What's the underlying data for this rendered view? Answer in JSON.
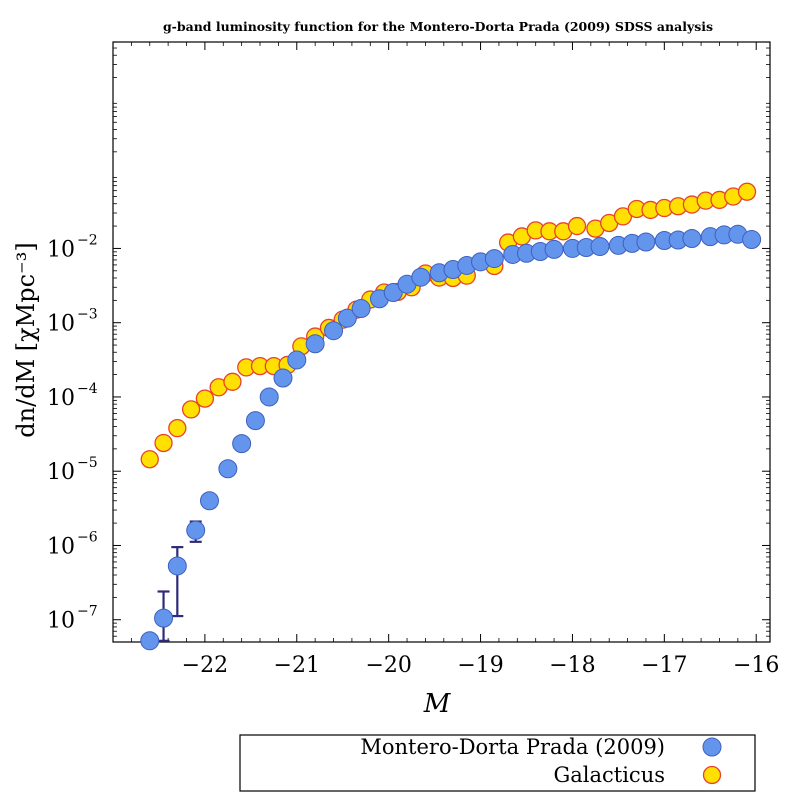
{
  "chart_data": {
    "type": "scatter",
    "title": "g-band luminosity function for the Montero-Dorta  Prada (2009) SDSS analysis",
    "xlabel": "M",
    "ylabel": "dn/dM [χMpc⁻³]",
    "xlim": [
      -23.0,
      -15.85
    ],
    "ylim_log10": [
      -7.3,
      0.78
    ],
    "yscale": "log",
    "x_ticks": [
      -22,
      -21,
      -20,
      -19,
      -18,
      -17,
      -16
    ],
    "x_tick_labels": [
      "−22",
      "−21",
      "−20",
      "−19",
      "−18",
      "−17",
      "−16"
    ],
    "y_ticks_log10": [
      -7,
      -6,
      -5,
      -4,
      -3,
      -2
    ],
    "y_tick_base": "10",
    "y_tick_exponents": [
      "−7",
      "−6",
      "−5",
      "−4",
      "−3",
      "−2"
    ],
    "legend_position": "bottom",
    "series": [
      {
        "name": "Montero-Dorta  Prada (2009)",
        "color": "#6495ed",
        "edge": "#3f5fbf",
        "x": [
          -22.6,
          -22.45,
          -22.3,
          -22.1,
          -21.95,
          -21.75,
          -21.6,
          -21.45,
          -21.3,
          -21.15,
          -21.0,
          -20.8,
          -20.6,
          -20.45,
          -20.3,
          -20.1,
          -19.95,
          -19.8,
          -19.65,
          -19.45,
          -19.3,
          -19.15,
          -19.0,
          -18.85,
          -18.65,
          -18.5,
          -18.35,
          -18.2,
          -18.0,
          -17.85,
          -17.7,
          -17.5,
          -17.35,
          -17.2,
          -17.0,
          -16.85,
          -16.7,
          -16.5,
          -16.35,
          -16.2,
          -16.05
        ],
        "y": [
          5.2e-08,
          1.05e-07,
          5.3e-07,
          1.6e-06,
          4e-06,
          1.08e-05,
          2.35e-05,
          4.8e-05,
          0.0001,
          0.00018,
          0.000315,
          0.00052,
          0.00078,
          0.00115,
          0.00155,
          0.0021,
          0.00255,
          0.0033,
          0.0041,
          0.0047,
          0.0052,
          0.0059,
          0.0066,
          0.0073,
          0.0083,
          0.0086,
          0.0091,
          0.0097,
          0.01,
          0.0103,
          0.0106,
          0.011,
          0.0117,
          0.0122,
          0.0128,
          0.013,
          0.0136,
          0.0144,
          0.0152,
          0.0155,
          0.0132
        ],
        "yerr_low": [
          null,
          5.2e-08,
          1.12e-07,
          1.12e-06,
          3.3e-06,
          null,
          null,
          null,
          null,
          null,
          null,
          null,
          null,
          null,
          null,
          null,
          null,
          null,
          null,
          null,
          null,
          null,
          null,
          null,
          null,
          null,
          null,
          null,
          null,
          null,
          null,
          null,
          null,
          null,
          null,
          null,
          null,
          null,
          null,
          null,
          null
        ],
        "yerr_high": [
          null,
          2.4e-07,
          9.5e-07,
          2.1e-06,
          4.8e-06,
          null,
          null,
          null,
          null,
          null,
          null,
          null,
          null,
          null,
          null,
          null,
          null,
          null,
          null,
          null,
          null,
          null,
          null,
          null,
          null,
          null,
          null,
          null,
          null,
          null,
          null,
          null,
          null,
          null,
          null,
          null,
          null,
          null,
          null,
          null,
          null
        ]
      },
      {
        "name": "Galacticus",
        "color": "#ffe000",
        "edge": "#e8422a",
        "x": [
          -22.6,
          -22.45,
          -22.3,
          -22.15,
          -22.0,
          -21.85,
          -21.7,
          -21.55,
          -21.4,
          -21.25,
          -21.1,
          -20.95,
          -20.8,
          -20.65,
          -20.5,
          -20.35,
          -20.2,
          -20.05,
          -19.9,
          -19.75,
          -19.6,
          -19.45,
          -19.3,
          -19.15,
          -19.0,
          -18.85,
          -18.7,
          -18.55,
          -18.4,
          -18.25,
          -18.1,
          -17.95,
          -17.75,
          -17.6,
          -17.45,
          -17.3,
          -17.15,
          -17.0,
          -16.85,
          -16.7,
          -16.55,
          -16.4,
          -16.25,
          -16.1
        ],
        "y": [
          1.45e-05,
          2.4e-05,
          3.8e-05,
          6.8e-05,
          9.5e-05,
          0.000135,
          0.00016,
          0.00025,
          0.00026,
          0.00026,
          0.00027,
          0.00048,
          0.00065,
          0.00085,
          0.0011,
          0.0015,
          0.00205,
          0.00255,
          0.0026,
          0.003,
          0.0046,
          0.00405,
          0.004,
          0.0043,
          0.0066,
          0.0058,
          0.012,
          0.0145,
          0.0175,
          0.017,
          0.017,
          0.02,
          0.0185,
          0.022,
          0.027,
          0.034,
          0.033,
          0.035,
          0.037,
          0.039,
          0.044,
          0.045,
          0.05,
          0.058
        ]
      }
    ]
  }
}
